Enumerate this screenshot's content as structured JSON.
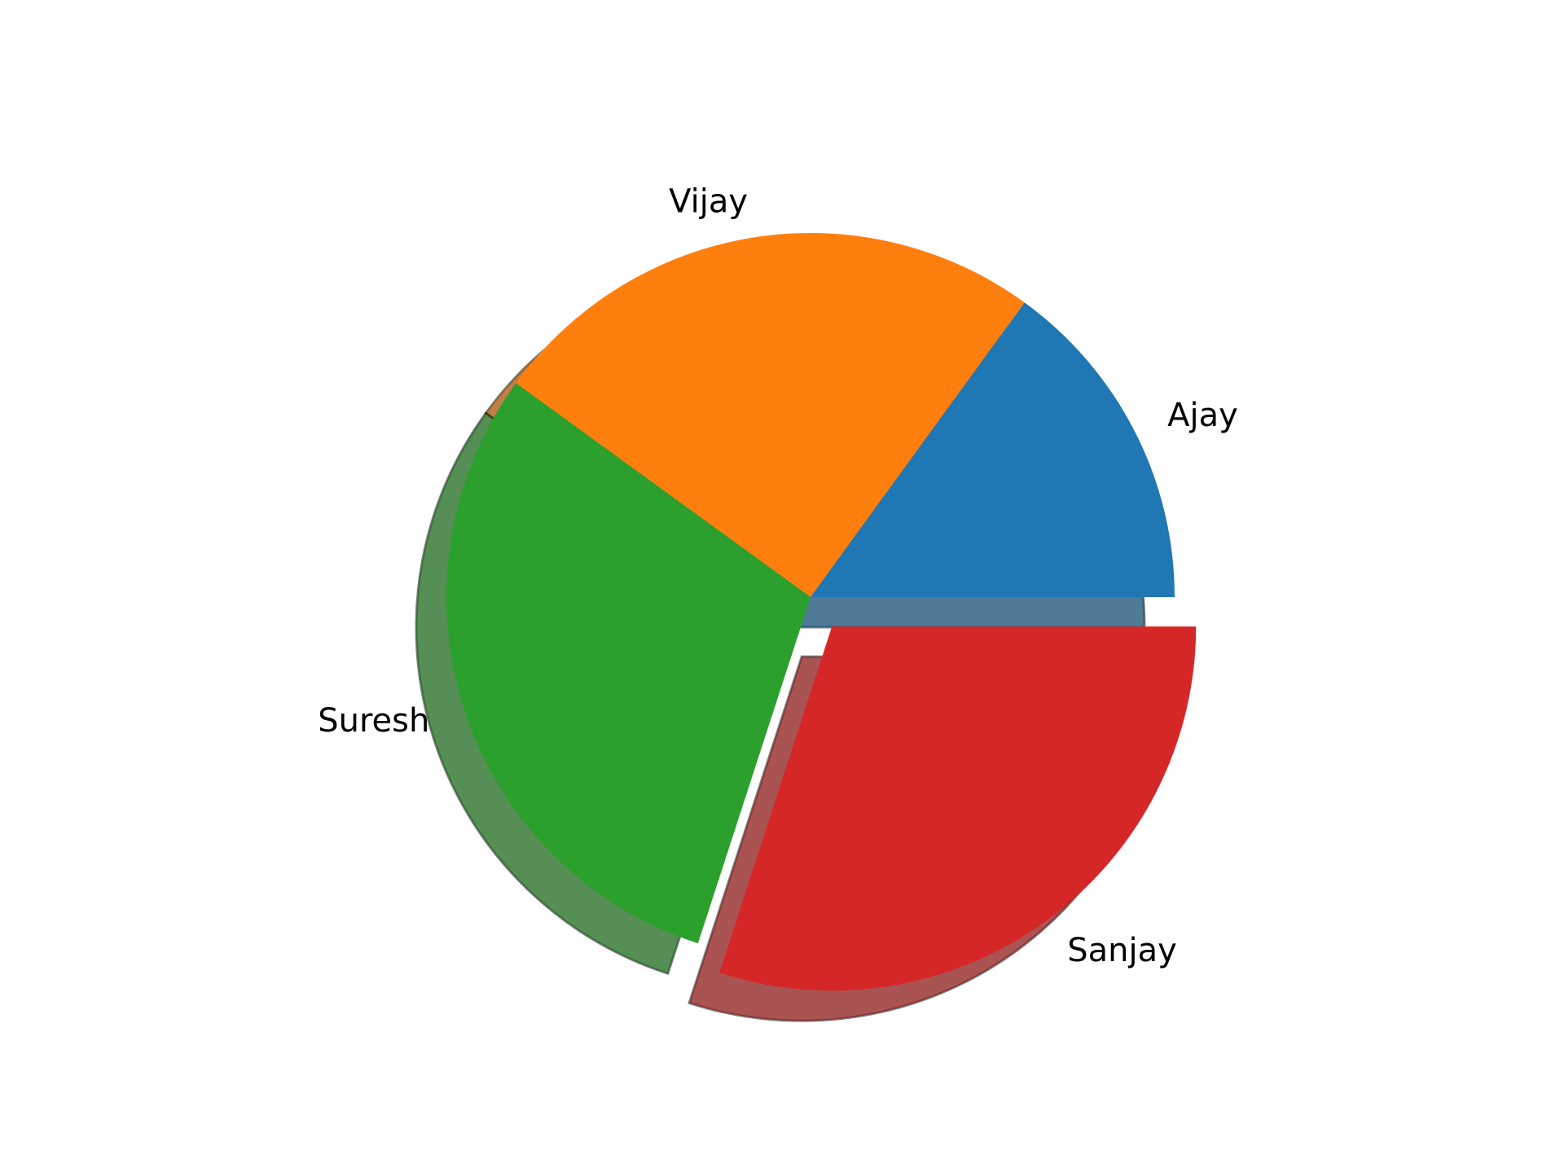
{
  "chart_data": {
    "type": "pie",
    "labels": [
      "Ajay",
      "Vijay",
      "Suresh",
      "Sanjay"
    ],
    "values": [
      15,
      25,
      30,
      30
    ],
    "colors": [
      "#1f77b4",
      "#ff7f0e",
      "#2ca02c",
      "#d62728"
    ],
    "explode": [
      0,
      0,
      0,
      0.1
    ],
    "shadow": true,
    "start_angle_deg": 0,
    "direction": "counterclockwise",
    "legend": "none"
  }
}
